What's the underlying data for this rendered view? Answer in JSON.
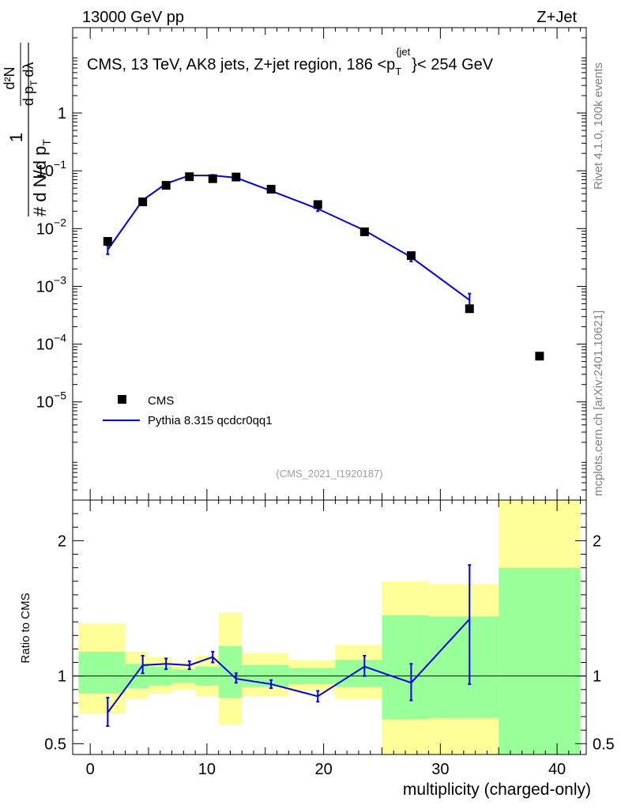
{
  "header": {
    "left": "13000 GeV pp",
    "right": "Z+Jet"
  },
  "side_labels": {
    "rivet": "Rivet 4.1.0,  100k events",
    "mcplots": "mcplots.cern.ch [arXiv:2401.10621]"
  },
  "colors": {
    "data": "#000000",
    "mc": "#0000ee",
    "band_inner": "#99ff99",
    "band_outer": "#ffff99"
  },
  "chart_data": [
    {
      "type": "scatter",
      "panel": "main",
      "title": "CMS, 13 TeV, AK8 jets, Z+jet region, 186 <p_T^{jet}> < 254 GeV",
      "title_parts": {
        "lead": "CMS, 13 TeV, AK8 jets, Z+jet region, 186 <p",
        "sub": "T",
        "sup": "{jet",
        "tail": "}< 254 GeV"
      },
      "ylabel": "1/(dN/dp_T) d²N/(dp_T dλ)",
      "ylabel_parts": {
        "one": "1",
        "dN": "d N",
        "slash": "/",
        "d": "d",
        "p": "p",
        "T": "T",
        "hash": "#",
        "num": "d²N",
        "den": "d p",
        "lam": "dλ"
      },
      "yscale": "log",
      "ylim": [
        2e-07,
        30
      ],
      "xlim": [
        -1.5,
        42.5
      ],
      "yticks": [
        {
          "v": 1e-05,
          "base": "10",
          "exp": "−5"
        },
        {
          "v": 0.0001,
          "base": "10",
          "exp": "−4"
        },
        {
          "v": 0.001,
          "base": "10",
          "exp": "−3"
        },
        {
          "v": 0.01,
          "base": "10",
          "exp": "−2"
        },
        {
          "v": 0.1,
          "base": "10",
          "exp": "−1"
        },
        {
          "v": 1,
          "base": "1",
          "exp": ""
        }
      ],
      "watermark": "(CMS_2021_I1920187)",
      "legend": {
        "position": "bottom-left",
        "entries": [
          "CMS",
          "Pythia 8.315 qcdcr0qq1"
        ]
      },
      "series": [
        {
          "name": "CMS",
          "kind": "points",
          "points": [
            {
              "x": 1.5,
              "y": 0.006
            },
            {
              "x": 4.5,
              "y": 0.029
            },
            {
              "x": 6.5,
              "y": 0.056
            },
            {
              "x": 8.5,
              "y": 0.079
            },
            {
              "x": 10.5,
              "y": 0.073
            },
            {
              "x": 12.5,
              "y": 0.078
            },
            {
              "x": 15.5,
              "y": 0.048
            },
            {
              "x": 19.5,
              "y": 0.026
            },
            {
              "x": 23.5,
              "y": 0.0088
            },
            {
              "x": 27.5,
              "y": 0.0034
            },
            {
              "x": 32.5,
              "y": 0.00041
            },
            {
              "x": 38.5,
              "y": 6.2e-05
            }
          ]
        },
        {
          "name": "Pythia 8.315 qcdcr0qq1",
          "kind": "line",
          "points": [
            {
              "x": 1.5,
              "y": 0.0043,
              "lo": 0.0036,
              "hi": 0.0051
            },
            {
              "x": 4.5,
              "y": 0.031,
              "lo": 0.029,
              "hi": 0.033
            },
            {
              "x": 6.5,
              "y": 0.06,
              "lo": 0.058,
              "hi": 0.062
            },
            {
              "x": 8.5,
              "y": 0.083,
              "lo": 0.081,
              "hi": 0.085
            },
            {
              "x": 10.5,
              "y": 0.083,
              "lo": 0.081,
              "hi": 0.085
            },
            {
              "x": 12.5,
              "y": 0.076,
              "lo": 0.074,
              "hi": 0.078
            },
            {
              "x": 15.5,
              "y": 0.045,
              "lo": 0.043,
              "hi": 0.047
            },
            {
              "x": 19.5,
              "y": 0.022,
              "lo": 0.02,
              "hi": 0.024
            },
            {
              "x": 23.5,
              "y": 0.0093,
              "lo": 0.0085,
              "hi": 0.0101
            },
            {
              "x": 27.5,
              "y": 0.0032,
              "lo": 0.0027,
              "hi": 0.0037
            },
            {
              "x": 32.5,
              "y": 0.00058,
              "lo": 0.00043,
              "hi": 0.00075
            }
          ]
        }
      ]
    },
    {
      "type": "line",
      "panel": "ratio",
      "ylabel": "Ratio to CMS",
      "xlabel": "multiplicity (charged-only)",
      "xlim": [
        -1.5,
        42.5
      ],
      "ylim": [
        0.42,
        2.3
      ],
      "xticks": [
        {
          "v": 0,
          "label": "0"
        },
        {
          "v": 10,
          "label": "10"
        },
        {
          "v": 20,
          "label": "20"
        },
        {
          "v": 30,
          "label": "30"
        },
        {
          "v": 40,
          "label": "40"
        }
      ],
      "yticks": [
        {
          "v": 0.5,
          "label": "0.5"
        },
        {
          "v": 1,
          "label": "1"
        },
        {
          "v": 2,
          "label": "2"
        }
      ],
      "bands": [
        {
          "x0": -1,
          "x1": 3,
          "in_lo": 0.87,
          "in_hi": 1.18,
          "out_lo": 0.72,
          "out_hi": 1.39
        },
        {
          "x0": 3,
          "x1": 5,
          "in_lo": 0.91,
          "in_hi": 1.09,
          "out_lo": 0.83,
          "out_hi": 1.18
        },
        {
          "x0": 5,
          "x1": 7,
          "in_lo": 0.93,
          "in_hi": 1.07,
          "out_lo": 0.87,
          "out_hi": 1.14
        },
        {
          "x0": 7,
          "x1": 9,
          "in_lo": 0.95,
          "in_hi": 1.05,
          "out_lo": 0.9,
          "out_hi": 1.1
        },
        {
          "x0": 9,
          "x1": 11,
          "in_lo": 0.93,
          "in_hi": 1.07,
          "out_lo": 0.85,
          "out_hi": 1.15
        },
        {
          "x0": 11,
          "x1": 13,
          "in_lo": 0.84,
          "in_hi": 1.22,
          "out_lo": 0.64,
          "out_hi": 1.47
        },
        {
          "x0": 13,
          "x1": 17,
          "in_lo": 0.92,
          "in_hi": 1.08,
          "out_lo": 0.85,
          "out_hi": 1.17
        },
        {
          "x0": 17,
          "x1": 21,
          "in_lo": 0.94,
          "in_hi": 1.06,
          "out_lo": 0.89,
          "out_hi": 1.12
        },
        {
          "x0": 21,
          "x1": 25,
          "in_lo": 0.92,
          "in_hi": 1.12,
          "out_lo": 0.83,
          "out_hi": 1.23
        },
        {
          "x0": 25,
          "x1": 29,
          "in_lo": 0.68,
          "in_hi": 1.45,
          "out_lo": 0.3,
          "out_hi": 1.7
        },
        {
          "x0": 29,
          "x1": 35,
          "in_lo": 0.69,
          "in_hi": 1.44,
          "out_lo": 0.3,
          "out_hi": 1.68
        },
        {
          "x0": 35,
          "x1": 42,
          "in_lo": 0.3,
          "in_hi": 1.8,
          "out_lo": 0.3,
          "out_hi": 2.3
        }
      ],
      "series": [
        {
          "name": "Pythia 8.315 qcdcr0qq1 / CMS",
          "points": [
            {
              "x": 1.5,
              "y": 0.73,
              "lo": 0.63,
              "hi": 0.84
            },
            {
              "x": 4.5,
              "y": 1.08,
              "lo": 1.02,
              "hi": 1.15
            },
            {
              "x": 6.5,
              "y": 1.09,
              "lo": 1.05,
              "hi": 1.13
            },
            {
              "x": 8.5,
              "y": 1.08,
              "lo": 1.05,
              "hi": 1.11
            },
            {
              "x": 10.5,
              "y": 1.14,
              "lo": 1.1,
              "hi": 1.18
            },
            {
              "x": 12.5,
              "y": 0.98,
              "lo": 0.95,
              "hi": 1.02
            },
            {
              "x": 15.5,
              "y": 0.94,
              "lo": 0.91,
              "hi": 0.97
            },
            {
              "x": 19.5,
              "y": 0.85,
              "lo": 0.81,
              "hi": 0.89
            },
            {
              "x": 23.5,
              "y": 1.07,
              "lo": 1.0,
              "hi": 1.15
            },
            {
              "x": 27.5,
              "y": 0.95,
              "lo": 0.82,
              "hi": 1.09
            },
            {
              "x": 32.5,
              "y": 1.42,
              "lo": 0.94,
              "hi": 1.82
            }
          ]
        }
      ]
    }
  ]
}
